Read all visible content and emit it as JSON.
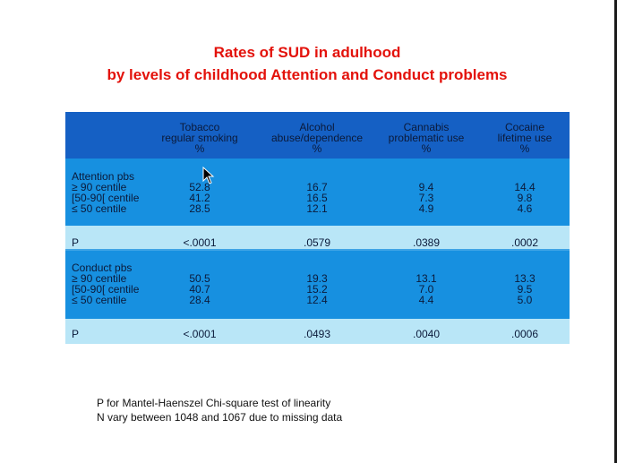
{
  "title": {
    "line1": "Rates of SUD in adulhood",
    "line2": "by levels of childhood Attention and Conduct problems"
  },
  "table": {
    "headers": [
      [
        "Tobacco",
        "regular smoking",
        "%"
      ],
      [
        "Alcohol",
        "abuse/dependence",
        "%"
      ],
      [
        "Cannabis",
        "problematic use",
        "%"
      ],
      [
        "Cocaine",
        "lifetime use",
        "%"
      ]
    ],
    "groups": [
      {
        "labels": [
          "Attention pbs",
          "≥ 90 centile",
          "[50-90[ centile",
          "≤ 50 centile"
        ],
        "values": [
          [
            "52.8",
            "41.2",
            "28.5"
          ],
          [
            "16.7",
            "16.5",
            "12.1"
          ],
          [
            "9.4",
            "7.3",
            "4.9"
          ],
          [
            "14.4",
            "9.8",
            "4.6"
          ]
        ],
        "p_label": "P",
        "p_values": [
          "<.0001",
          ".0579",
          ".0389",
          ".0002"
        ]
      },
      {
        "labels": [
          "Conduct pbs",
          "≥ 90 centile",
          "[50-90[ centile",
          "≤ 50 centile"
        ],
        "values": [
          [
            "50.5",
            "40.7",
            "28.4"
          ],
          [
            "19.3",
            "15.2",
            "12.4"
          ],
          [
            "13.1",
            "7.0",
            "4.4"
          ],
          [
            "13.3",
            "9.5",
            "5.0"
          ]
        ],
        "p_label": "P",
        "p_values": [
          "<.0001",
          ".0493",
          ".0040",
          ".0006"
        ]
      }
    ]
  },
  "footnote": {
    "line1": "P for Mantel-Haenszel Chi-square test of linearity",
    "line2": "N vary between 1048 and 1067 due to missing data"
  }
}
